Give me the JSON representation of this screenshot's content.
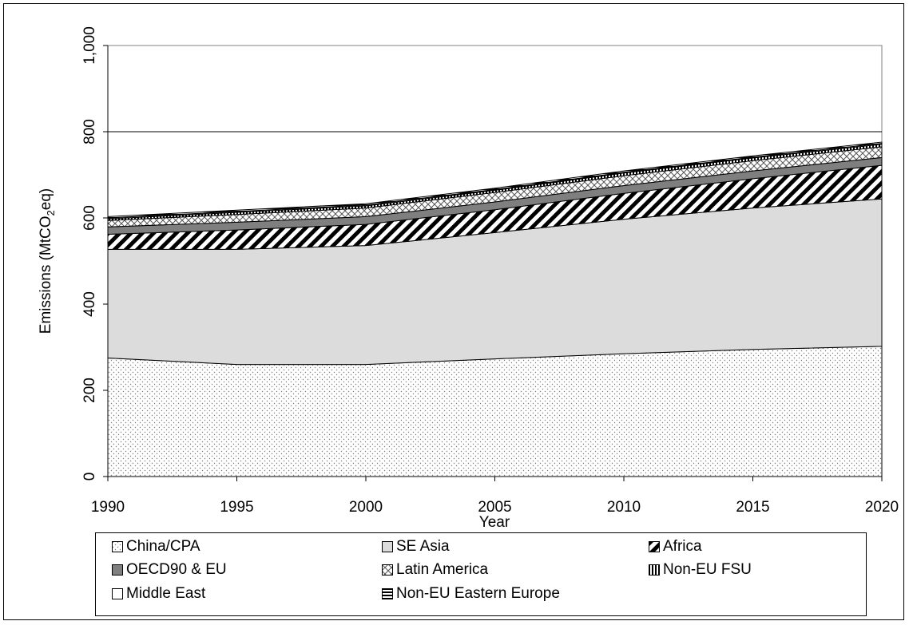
{
  "chart_data": {
    "type": "area",
    "stacked": true,
    "title": "",
    "xlabel": "Year",
    "ylabel_main": "Emissions (MtCO",
    "ylabel_sub": "2",
    "ylabel_tail": "eq)",
    "x": [
      1990,
      1995,
      2000,
      2005,
      2010,
      2015,
      2020
    ],
    "x_ticks": [
      "1990",
      "1995",
      "2000",
      "2005",
      "2010",
      "2015",
      "2020"
    ],
    "y_ticks": [
      "0",
      "200",
      "400",
      "600",
      "800",
      "1,000"
    ],
    "y_tick_values": [
      0,
      200,
      400,
      600,
      800,
      1000
    ],
    "ylim": [
      0,
      1000
    ],
    "gridlines": [
      800
    ],
    "legend_position": "bottom",
    "series": [
      {
        "name": "China/CPA",
        "pattern": "dots",
        "values": [
          275,
          260,
          260,
          273,
          285,
          295,
          302
        ]
      },
      {
        "name": "SE Asia",
        "pattern": "lightgray",
        "values": [
          252,
          267,
          276,
          293,
          312,
          328,
          342
        ]
      },
      {
        "name": "Africa",
        "pattern": "diagonal",
        "values": [
          35,
          45,
          49,
          53,
          60,
          68,
          78
        ]
      },
      {
        "name": "OECD90 & EU",
        "pattern": "darkgray",
        "values": [
          17,
          18,
          18,
          18,
          18,
          18,
          18
        ]
      },
      {
        "name": "Latin America",
        "pattern": "crosshatch",
        "values": [
          15,
          18,
          20,
          22,
          23,
          24,
          25
        ]
      },
      {
        "name": "Non-EU FSU",
        "pattern": "vertical",
        "values": [
          4,
          5,
          5,
          5,
          6,
          6,
          6
        ]
      },
      {
        "name": "Middle East",
        "pattern": "white",
        "values": [
          2,
          2,
          2,
          2,
          2,
          2,
          2
        ]
      },
      {
        "name": "Non-EU Eastern Europe",
        "pattern": "horizontal",
        "values": [
          3,
          3,
          3,
          3,
          3,
          3,
          3
        ]
      }
    ]
  }
}
